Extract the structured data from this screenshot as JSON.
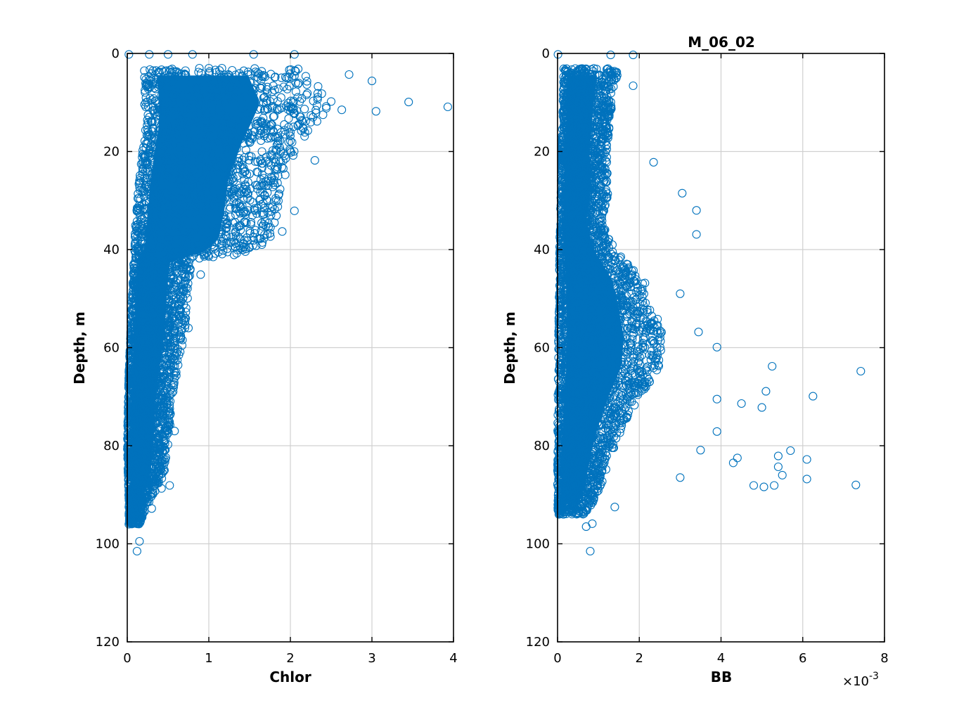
{
  "chart_data": [
    {
      "type": "scatter",
      "title": "",
      "xlabel": "Chlor",
      "ylabel": "Depth, m",
      "xlim": [
        0,
        4
      ],
      "ylim": [
        0,
        120
      ],
      "y_reversed": true,
      "grid": true,
      "xticks": [
        "0",
        "1",
        "2",
        "3",
        "4"
      ],
      "yticks": [
        "0",
        "20",
        "40",
        "60",
        "80",
        "100",
        "120"
      ],
      "marker": "open-circle",
      "color": "#0072BD",
      "series": [
        {
          "points": [
            [
              0.02,
              0.2
            ],
            [
              0.27,
              0.2
            ],
            [
              0.5,
              0.2
            ],
            [
              0.8,
              0.2
            ],
            [
              1.55,
              0.2
            ],
            [
              2.05,
              0.2
            ],
            [
              2.72,
              4.3
            ],
            [
              3.0,
              5.6
            ],
            [
              3.45,
              9.9
            ],
            [
              3.93,
              10.9
            ],
            [
              3.05,
              11.8
            ],
            [
              2.63,
              11.5
            ],
            [
              2.5,
              9.8
            ],
            [
              2.4,
              12.5
            ],
            [
              2.25,
              14.0
            ],
            [
              2.3,
              21.8
            ],
            [
              2.05,
              32.1
            ],
            [
              1.9,
              36.3
            ],
            [
              1.8,
              25.8
            ],
            [
              1.65,
              39.0
            ],
            [
              1.0,
              41.4
            ],
            [
              0.9,
              45.1
            ],
            [
              0.75,
              56.0
            ],
            [
              0.6,
              65.0
            ],
            [
              0.58,
              77.0
            ],
            [
              0.52,
              88.1
            ],
            [
              0.42,
              88.7
            ],
            [
              0.3,
              92.8
            ],
            [
              0.15,
              99.5
            ],
            [
              0.12,
              101.5
            ]
          ],
          "envelope_depth_maxvalue": [
            [
              3,
              2.2
            ],
            [
              10,
              2.5
            ],
            [
              18,
              2.15
            ],
            [
              26,
              1.9
            ],
            [
              32,
              1.85
            ],
            [
              38,
              1.75
            ],
            [
              41,
              1.4
            ],
            [
              42,
              0.8
            ],
            [
              48,
              0.75
            ],
            [
              55,
              0.72
            ],
            [
              62,
              0.65
            ],
            [
              70,
              0.55
            ],
            [
              78,
              0.52
            ],
            [
              86,
              0.45
            ],
            [
              92,
              0.25
            ],
            [
              96,
              0.15
            ]
          ],
          "envelope_depth_minvalue": [
            [
              3,
              0.2
            ],
            [
              15,
              0.22
            ],
            [
              25,
              0.15
            ],
            [
              35,
              0.1
            ],
            [
              50,
              0.06
            ],
            [
              65,
              0.02
            ],
            [
              80,
              0.0
            ],
            [
              92,
              0.02
            ]
          ]
        }
      ]
    },
    {
      "type": "scatter",
      "title": "M_06_02",
      "xlabel": "BB",
      "ylabel": "Depth, m",
      "xlim": [
        0,
        0.008
      ],
      "ylim": [
        0,
        120
      ],
      "y_reversed": true,
      "grid": true,
      "xticks": [
        "0",
        "2",
        "4",
        "6",
        "8"
      ],
      "yticks": [
        "0",
        "20",
        "40",
        "60",
        "80",
        "100",
        "120"
      ],
      "x_multiplier": "×10",
      "x_multiplier_exp": "-3",
      "marker": "open-circle",
      "color": "#0072BD",
      "series": [
        {
          "points": [
            [
              1e-05,
              0.2
            ],
            [
              0.0013,
              0.3
            ],
            [
              0.00185,
              0.3
            ],
            [
              0.00185,
              6.6
            ],
            [
              0.00235,
              22.2
            ],
            [
              0.00305,
              28.5
            ],
            [
              0.0034,
              32.0
            ],
            [
              0.0034,
              36.9
            ],
            [
              0.003,
              49.0
            ],
            [
              0.00345,
              56.8
            ],
            [
              0.0039,
              59.9
            ],
            [
              0.00525,
              63.8
            ],
            [
              0.00742,
              64.8
            ],
            [
              0.0039,
              70.5
            ],
            [
              0.0045,
              71.4
            ],
            [
              0.005,
              72.2
            ],
            [
              0.00625,
              69.9
            ],
            [
              0.0051,
              68.9
            ],
            [
              0.0039,
              77.1
            ],
            [
              0.0035,
              80.9
            ],
            [
              0.0057,
              81.0
            ],
            [
              0.0054,
              82.1
            ],
            [
              0.0061,
              82.8
            ],
            [
              0.0044,
              82.5
            ],
            [
              0.0043,
              83.5
            ],
            [
              0.0054,
              84.3
            ],
            [
              0.0055,
              86.0
            ],
            [
              0.0053,
              88.1
            ],
            [
              0.0061,
              86.8
            ],
            [
              0.0073,
              88.0
            ],
            [
              0.0048,
              88.1
            ],
            [
              0.00505,
              88.4
            ],
            [
              0.003,
              86.5
            ],
            [
              0.0014,
              92.5
            ],
            [
              0.0008,
              101.5
            ],
            [
              0.00085,
              95.9
            ],
            [
              0.0007,
              96.5
            ]
          ],
          "envelope_depth_maxvalue": [
            [
              3,
              0.0015
            ],
            [
              10,
              0.00135
            ],
            [
              20,
              0.0012
            ],
            [
              28,
              0.00125
            ],
            [
              34,
              0.0011
            ],
            [
              40,
              0.0014
            ],
            [
              46,
              0.0021
            ],
            [
              52,
              0.0024
            ],
            [
              58,
              0.0026
            ],
            [
              64,
              0.0025
            ],
            [
              70,
              0.002
            ],
            [
              76,
              0.0016
            ],
            [
              82,
              0.0013
            ],
            [
              88,
              0.0011
            ],
            [
              94,
              0.0007
            ]
          ],
          "envelope_depth_minvalue": [
            [
              3,
              0.00015
            ],
            [
              20,
              0.0001
            ],
            [
              40,
              5e-05
            ],
            [
              60,
              2e-05
            ],
            [
              80,
              0.0
            ],
            [
              94,
              0.0
            ]
          ]
        }
      ]
    }
  ]
}
